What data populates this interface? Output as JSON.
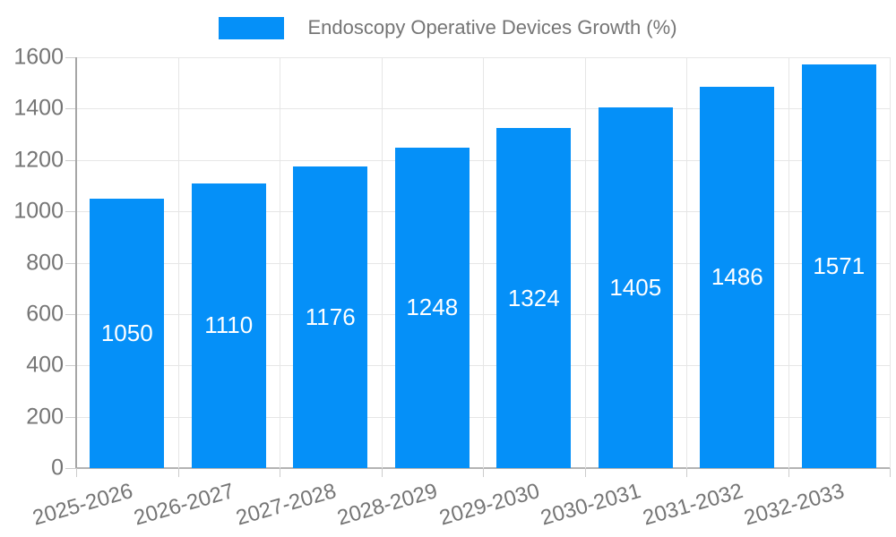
{
  "chart_data": {
    "type": "bar",
    "title": "Endoscopy Operative Devices Growth (%)",
    "legend": {
      "position": "top",
      "entries": [
        "Endoscopy Operative Devices Growth (%)"
      ]
    },
    "categories": [
      "2025-2026",
      "2026-2027",
      "2027-2028",
      "2028-2029",
      "2029-2030",
      "2030-2031",
      "2031-2032",
      "2032-2033"
    ],
    "series": [
      {
        "name": "Endoscopy Operative Devices Growth (%)",
        "values": [
          1050,
          1110,
          1176,
          1248,
          1324,
          1405,
          1486,
          1571
        ]
      }
    ],
    "value_labels": [
      "1050",
      "1110",
      "1176",
      "1248",
      "1324",
      "1405",
      "1486",
      "1571"
    ],
    "xlabel": "",
    "ylabel": "",
    "ylim": [
      0,
      1600
    ],
    "yticks": [
      0,
      200,
      400,
      600,
      800,
      1000,
      1200,
      1400,
      1600
    ],
    "grid": true,
    "colors": {
      "bar": "#0590f8",
      "bar_value_text": "#ffffff",
      "axis_text": "#757575",
      "gridline": "#e6e6e6",
      "axis_line": "#b3b3b3",
      "background": "#ffffff"
    }
  }
}
